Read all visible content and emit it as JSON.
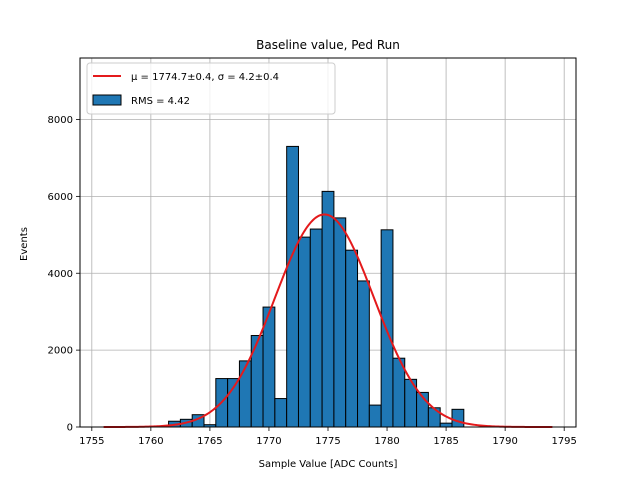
{
  "chart_data": {
    "type": "bar",
    "title": "Baseline value, Ped Run",
    "xlabel": "Sample Value [ADC Counts]",
    "ylabel": "Events",
    "xlim": [
      1754,
      1796
    ],
    "ylim": [
      0,
      9600
    ],
    "xticks": [
      1755,
      1760,
      1765,
      1770,
      1775,
      1780,
      1785,
      1790,
      1795
    ],
    "yticks": [
      0,
      2000,
      4000,
      6000,
      8000
    ],
    "grid": true,
    "legend_position": "top-left",
    "bar_color": "#1f77b4",
    "fit_color": "#e41a1c",
    "bin_width": 1,
    "bins": [
      {
        "x": 1762,
        "value": 150
      },
      {
        "x": 1763,
        "value": 200
      },
      {
        "x": 1764,
        "value": 320
      },
      {
        "x": 1765,
        "value": 60
      },
      {
        "x": 1766,
        "value": 1260
      },
      {
        "x": 1767,
        "value": 1260
      },
      {
        "x": 1768,
        "value": 1720
      },
      {
        "x": 1769,
        "value": 2380
      },
      {
        "x": 1770,
        "value": 3120
      },
      {
        "x": 1771,
        "value": 740
      },
      {
        "x": 1772,
        "value": 7300
      },
      {
        "x": 1773,
        "value": 4940
      },
      {
        "x": 1774,
        "value": 5150
      },
      {
        "x": 1775,
        "value": 6130
      },
      {
        "x": 1776,
        "value": 5440
      },
      {
        "x": 1777,
        "value": 4600
      },
      {
        "x": 1778,
        "value": 3800
      },
      {
        "x": 1779,
        "value": 570
      },
      {
        "x": 1780,
        "value": 5130
      },
      {
        "x": 1781,
        "value": 1790
      },
      {
        "x": 1782,
        "value": 1240
      },
      {
        "x": 1783,
        "value": 900
      },
      {
        "x": 1784,
        "value": 500
      },
      {
        "x": 1785,
        "value": 100
      },
      {
        "x": 1786,
        "value": 460
      }
    ],
    "fit": {
      "mu": 1774.7,
      "sigma": 4.2,
      "amplitude": 5530,
      "x_range": [
        1756,
        1794
      ]
    },
    "legend": [
      {
        "kind": "line",
        "label": "μ = 1774.7±0.4, σ = 4.2±0.4"
      },
      {
        "kind": "bar",
        "label": "RMS = 4.42"
      }
    ]
  }
}
